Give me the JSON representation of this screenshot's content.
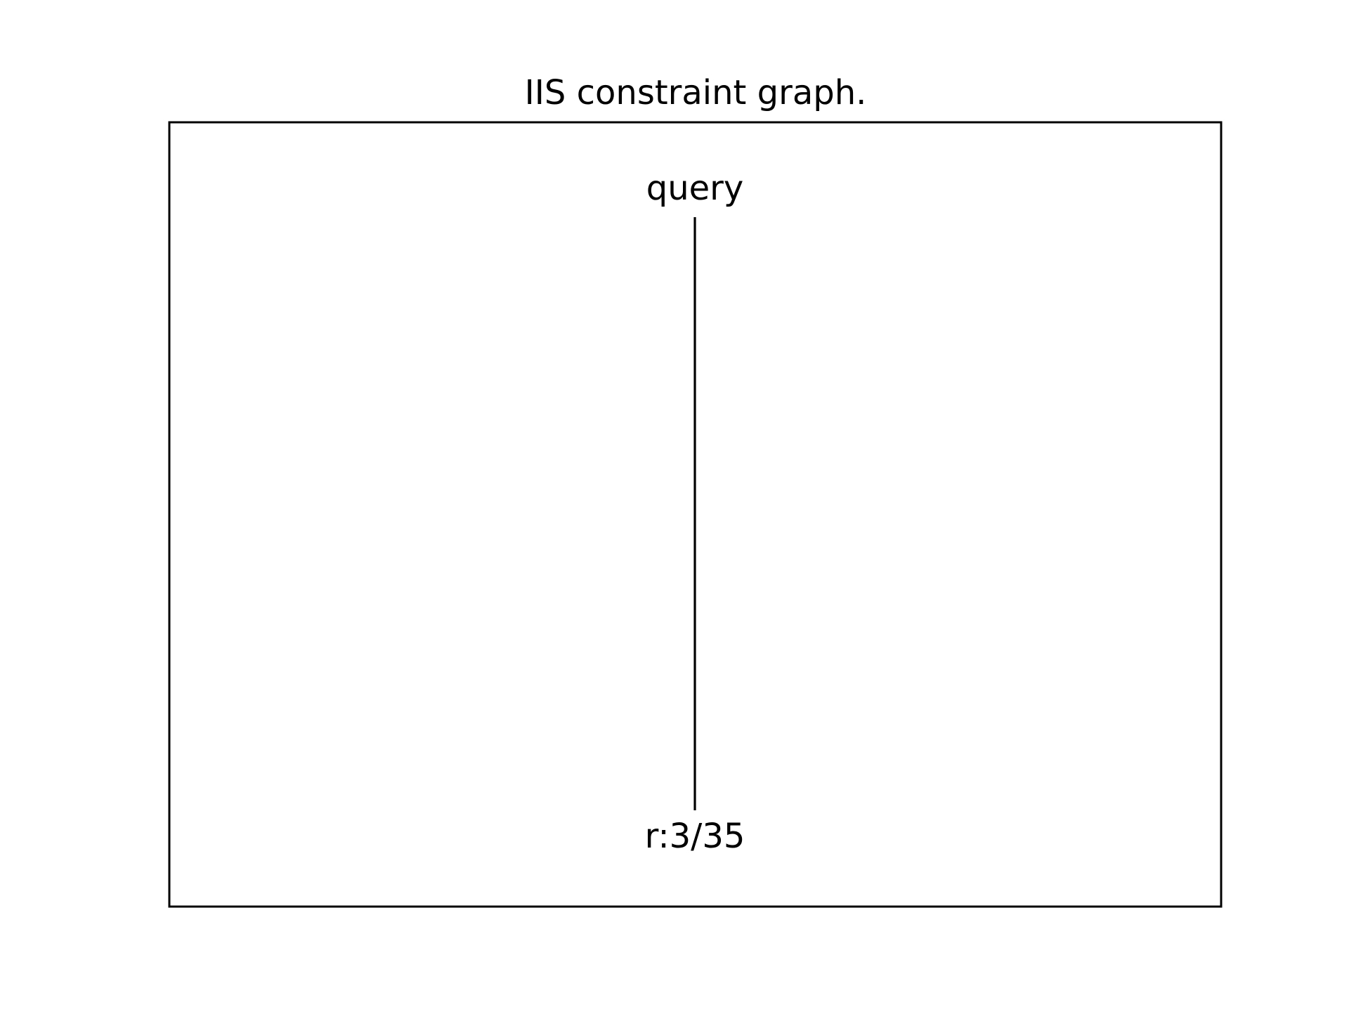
{
  "title": "IIS constraint graph.",
  "graph": {
    "nodes": [
      {
        "id": "query",
        "label": "query"
      },
      {
        "id": "r_3_35",
        "label": "r:3/35"
      }
    ],
    "edges": [
      {
        "from": "query",
        "to": "r_3_35"
      }
    ],
    "colors": {
      "background": "#ffffff",
      "ink": "#000000"
    }
  }
}
